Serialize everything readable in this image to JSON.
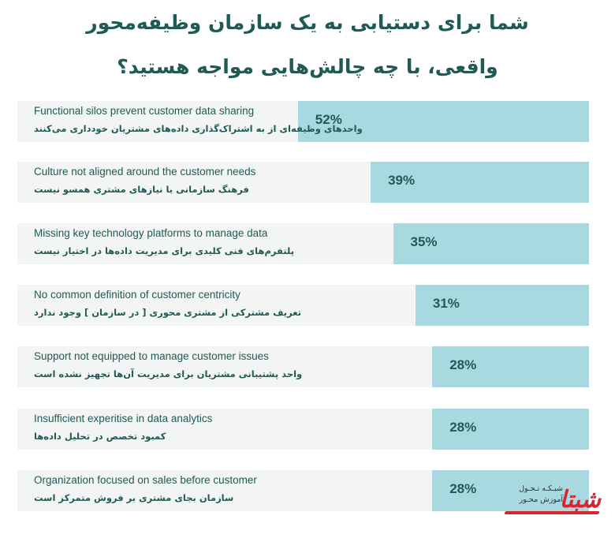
{
  "title": {
    "line1": "شما برای دستیابی به یک سازمان وظیفه‌محور",
    "line2": "واقعی، با چه چالش‌هایی مواجه هستید؟"
  },
  "chart_data": {
    "type": "bar",
    "orientation": "horizontal",
    "title": "شما برای دستیابی به یک سازمان وظیفه‌محور واقعی، با چه چالش‌هایی مواجه هستید؟",
    "categories": [
      "Functional silos prevent customer data sharing",
      "Culture not aligned around the customer needs",
      "Missing key technology platforms to manage data",
      "No common definition of customer centricity",
      "Support not equipped to manage customer issues",
      "Insufficient experitise in data analytics",
      "Organization focused on sales before customer"
    ],
    "categories_fa": [
      "واحدهای وظیفه‌ای از به اشتراک‌گذاری داده‌های مشتریان خودداری می‌کنند",
      "فرهنگ سازمانی با نیازهای مشتری همسو نیست",
      "پلتفرم‌های فنی کلیدی برای مدیریت داده‌ها در اختیار نیست",
      "تعریف مشترکی از مشتری محوری [ در سازمان ] وجود  ندارد",
      "واحد پشتیبانی مشتریان برای مدیریت آن‌ها تجهیز نشده است",
      "کمبود تخصص در تحلیل داده‌ها",
      "سازمان بجای مشتری بر فروش متمرکز است"
    ],
    "values": [
      52,
      39,
      35,
      31,
      28,
      28,
      28
    ],
    "value_labels": [
      "52%",
      "39%",
      "35%",
      "31%",
      "28%",
      "28%",
      "28%"
    ],
    "unit": "%",
    "bar_color": "#a8d9e0",
    "row_background": "#f3f5f4",
    "text_color": "#1f5a55"
  },
  "logo": {
    "line1": "شبـکـه تـحـول",
    "line2": "آموزش محـور",
    "mark": "شبتا",
    "accent": "#d7262e"
  }
}
